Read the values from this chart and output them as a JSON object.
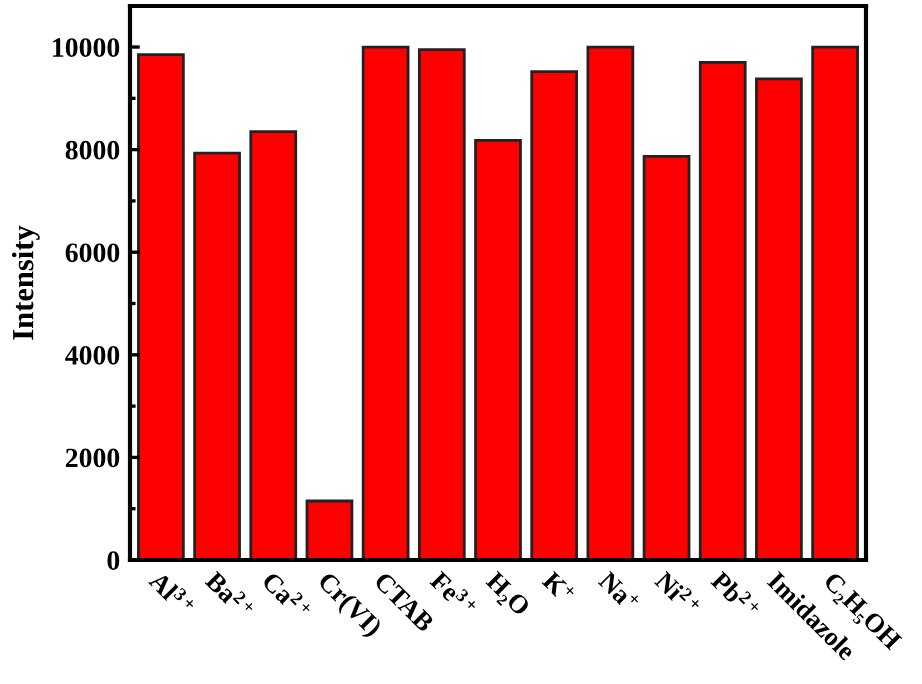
{
  "chart_data": {
    "type": "bar",
    "ylabel": "Intensity",
    "categories": [
      "Al$^{3+}$",
      "Ba$^{2+}$",
      "Ca$^{2+}$",
      "Cr(VI)",
      "CTAB",
      "Fe$^{3+}$",
      "H₂O",
      "K$^{+}$",
      "Na$^{+}$",
      "Ni$^{2+}$",
      "Pb$^{2+}$",
      "Imidazole",
      "C₂H₅OH"
    ],
    "values": [
      9850,
      7930,
      8350,
      1150,
      10000,
      9950,
      8180,
      9520,
      10000,
      7870,
      9700,
      9380,
      10000
    ],
    "color": "#ff0000",
    "ylim": [
      0,
      10800
    ],
    "yticks": [
      0,
      2000,
      4000,
      6000,
      8000,
      10000
    ],
    "grid": false
  }
}
